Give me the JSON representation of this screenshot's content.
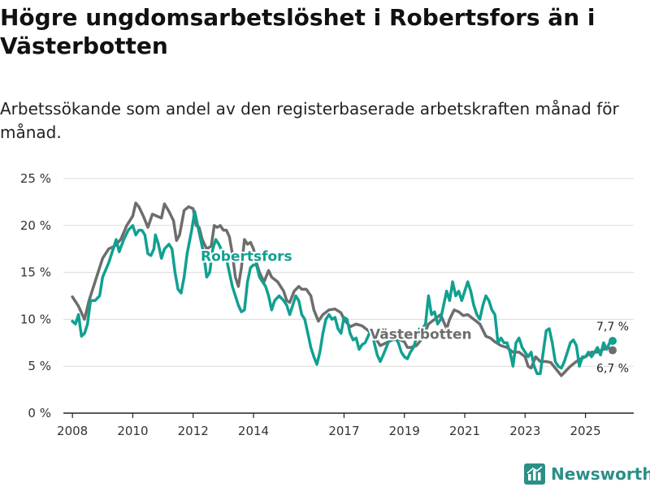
{
  "title": "Högre ungdomsarbetslöshet i Robertsfors än i Västerbotten",
  "subtitle": "Arbetssökande som andel av den registerbaserade arbetskraften månad för månad.",
  "brand": {
    "name": "Newsworthy",
    "icon": "bar-chart-logo-icon"
  },
  "colors": {
    "robertsfors": "#11a091",
    "vasterbotten": "#6d6d6d",
    "grid": "#dcdcdc",
    "brand": "#2b8f86"
  },
  "chart_data": {
    "type": "line",
    "title": "Högre ungdomsarbetslöshet i Robertsfors än i Västerbotten",
    "ylim": [
      0,
      25
    ],
    "xlim": [
      2007.7,
      2026.6
    ],
    "y_ticks": [
      0,
      5,
      10,
      15,
      20,
      25
    ],
    "y_tick_labels": [
      "0 %",
      "5 %",
      "10 %",
      "15 %",
      "20 %",
      "25 %"
    ],
    "x_ticks": [
      2008,
      2010,
      2012,
      2014,
      2017,
      2019,
      2021,
      2023,
      2025
    ],
    "x_tick_labels": [
      "2008",
      "2010",
      "2012",
      "2014",
      "2017",
      "2019",
      "2021",
      "2023",
      "2025"
    ],
    "grid": true,
    "series": [
      {
        "name": "Västerbotten",
        "label": "Västerbotten",
        "end_label": "6,7 %",
        "end_value": 6.7,
        "points": [
          [
            2008.0,
            12.4
          ],
          [
            2008.2,
            11.4
          ],
          [
            2008.4,
            10.0
          ],
          [
            2008.55,
            12.0
          ],
          [
            2008.75,
            14.0
          ],
          [
            2009.0,
            16.5
          ],
          [
            2009.2,
            17.5
          ],
          [
            2009.4,
            17.8
          ],
          [
            2009.6,
            18.5
          ],
          [
            2009.8,
            20.0
          ],
          [
            2010.0,
            21.0
          ],
          [
            2010.1,
            22.4
          ],
          [
            2010.2,
            22.0
          ],
          [
            2010.35,
            21.0
          ],
          [
            2010.5,
            19.8
          ],
          [
            2010.65,
            21.2
          ],
          [
            2010.8,
            21.0
          ],
          [
            2010.95,
            20.8
          ],
          [
            2011.05,
            22.3
          ],
          [
            2011.2,
            21.5
          ],
          [
            2011.35,
            20.5
          ],
          [
            2011.45,
            18.4
          ],
          [
            2011.55,
            19.0
          ],
          [
            2011.7,
            21.6
          ],
          [
            2011.85,
            22.0
          ],
          [
            2012.0,
            21.8
          ],
          [
            2012.1,
            20.0
          ],
          [
            2012.2,
            19.8
          ],
          [
            2012.3,
            18.5
          ],
          [
            2012.45,
            17.5
          ],
          [
            2012.6,
            17.8
          ],
          [
            2012.7,
            20.0
          ],
          [
            2012.8,
            19.8
          ],
          [
            2012.9,
            20.0
          ],
          [
            2013.0,
            19.5
          ],
          [
            2013.1,
            19.5
          ],
          [
            2013.2,
            18.8
          ],
          [
            2013.3,
            17.0
          ],
          [
            2013.4,
            14.5
          ],
          [
            2013.5,
            13.5
          ],
          [
            2013.6,
            15.5
          ],
          [
            2013.7,
            18.5
          ],
          [
            2013.8,
            18.0
          ],
          [
            2013.9,
            18.2
          ],
          [
            2014.0,
            17.5
          ],
          [
            2014.1,
            16.0
          ],
          [
            2014.2,
            15.0
          ],
          [
            2014.35,
            14.0
          ],
          [
            2014.5,
            15.2
          ],
          [
            2014.6,
            14.5
          ],
          [
            2014.8,
            14.0
          ],
          [
            2015.0,
            13.0
          ],
          [
            2015.1,
            12.0
          ],
          [
            2015.2,
            11.8
          ],
          [
            2015.35,
            13.0
          ],
          [
            2015.5,
            13.5
          ],
          [
            2015.6,
            13.2
          ],
          [
            2015.75,
            13.2
          ],
          [
            2015.9,
            12.5
          ],
          [
            2016.0,
            11.0
          ],
          [
            2016.15,
            9.8
          ],
          [
            2016.3,
            10.5
          ],
          [
            2016.5,
            11.0
          ],
          [
            2016.7,
            11.1
          ],
          [
            2016.9,
            10.7
          ],
          [
            2017.0,
            10.0
          ],
          [
            2017.2,
            9.2
          ],
          [
            2017.4,
            9.5
          ],
          [
            2017.6,
            9.3
          ],
          [
            2017.8,
            8.8
          ],
          [
            2018.0,
            8.2
          ],
          [
            2018.2,
            7.2
          ],
          [
            2018.4,
            7.5
          ],
          [
            2018.6,
            7.8
          ],
          [
            2018.8,
            7.9
          ],
          [
            2019.0,
            7.6
          ],
          [
            2019.1,
            7.0
          ],
          [
            2019.2,
            7.0
          ],
          [
            2019.4,
            7.2
          ],
          [
            2019.6,
            8.0
          ],
          [
            2019.8,
            9.5
          ],
          [
            2020.0,
            10.0
          ],
          [
            2020.2,
            10.5
          ],
          [
            2020.4,
            9.0
          ],
          [
            2020.5,
            10.0
          ],
          [
            2020.65,
            11.0
          ],
          [
            2020.8,
            10.8
          ],
          [
            2020.95,
            10.4
          ],
          [
            2021.1,
            10.5
          ],
          [
            2021.3,
            10.0
          ],
          [
            2021.5,
            9.5
          ],
          [
            2021.7,
            8.2
          ],
          [
            2021.85,
            8.0
          ],
          [
            2022.0,
            7.6
          ],
          [
            2022.2,
            7.2
          ],
          [
            2022.4,
            7.0
          ],
          [
            2022.6,
            6.5
          ],
          [
            2022.8,
            6.5
          ],
          [
            2023.0,
            6.0
          ],
          [
            2023.1,
            5.0
          ],
          [
            2023.2,
            4.8
          ],
          [
            2023.35,
            6.0
          ],
          [
            2023.5,
            5.5
          ],
          [
            2023.7,
            5.5
          ],
          [
            2023.85,
            5.4
          ],
          [
            2024.0,
            4.8
          ],
          [
            2024.2,
            4.0
          ],
          [
            2024.35,
            4.5
          ],
          [
            2024.5,
            5.0
          ],
          [
            2024.7,
            5.5
          ],
          [
            2024.85,
            5.8
          ],
          [
            2025.0,
            6.0
          ],
          [
            2025.2,
            6.5
          ],
          [
            2025.4,
            6.5
          ],
          [
            2025.6,
            6.8
          ],
          [
            2025.75,
            7.0
          ],
          [
            2025.9,
            6.7
          ]
        ]
      },
      {
        "name": "Robertsfors",
        "label": "Robertsfors",
        "end_label": "7,7 %",
        "end_value": 7.7,
        "points": [
          [
            2008.0,
            9.8
          ],
          [
            2008.1,
            9.5
          ],
          [
            2008.2,
            10.5
          ],
          [
            2008.3,
            8.2
          ],
          [
            2008.4,
            8.5
          ],
          [
            2008.5,
            9.5
          ],
          [
            2008.6,
            12.0
          ],
          [
            2008.75,
            12.0
          ],
          [
            2008.9,
            12.5
          ],
          [
            2009.0,
            14.5
          ],
          [
            2009.2,
            16.0
          ],
          [
            2009.35,
            17.5
          ],
          [
            2009.45,
            18.5
          ],
          [
            2009.55,
            17.2
          ],
          [
            2009.7,
            18.5
          ],
          [
            2009.85,
            19.5
          ],
          [
            2010.0,
            20.0
          ],
          [
            2010.1,
            19.0
          ],
          [
            2010.2,
            19.5
          ],
          [
            2010.3,
            19.5
          ],
          [
            2010.4,
            19.0
          ],
          [
            2010.5,
            17.0
          ],
          [
            2010.6,
            16.8
          ],
          [
            2010.7,
            17.5
          ],
          [
            2010.75,
            19.0
          ],
          [
            2010.85,
            18.0
          ],
          [
            2010.95,
            16.5
          ],
          [
            2011.05,
            17.5
          ],
          [
            2011.2,
            18.0
          ],
          [
            2011.3,
            17.5
          ],
          [
            2011.4,
            15.0
          ],
          [
            2011.5,
            13.2
          ],
          [
            2011.6,
            12.8
          ],
          [
            2011.7,
            14.5
          ],
          [
            2011.8,
            17.0
          ],
          [
            2011.95,
            19.5
          ],
          [
            2012.05,
            21.5
          ],
          [
            2012.15,
            20.0
          ],
          [
            2012.25,
            18.5
          ],
          [
            2012.35,
            17.0
          ],
          [
            2012.45,
            14.5
          ],
          [
            2012.55,
            15.0
          ],
          [
            2012.65,
            17.5
          ],
          [
            2012.75,
            18.5
          ],
          [
            2012.85,
            18.0
          ],
          [
            2013.0,
            17.0
          ],
          [
            2013.1,
            16.5
          ],
          [
            2013.2,
            15.0
          ],
          [
            2013.3,
            13.5
          ],
          [
            2013.4,
            12.5
          ],
          [
            2013.5,
            11.5
          ],
          [
            2013.6,
            10.8
          ],
          [
            2013.7,
            11.0
          ],
          [
            2013.8,
            14.0
          ],
          [
            2013.9,
            15.5
          ],
          [
            2014.0,
            15.8
          ],
          [
            2014.1,
            15.8
          ],
          [
            2014.2,
            14.5
          ],
          [
            2014.3,
            14.0
          ],
          [
            2014.4,
            13.5
          ],
          [
            2014.5,
            12.5
          ],
          [
            2014.6,
            11.0
          ],
          [
            2014.7,
            12.0
          ],
          [
            2014.85,
            12.5
          ],
          [
            2015.0,
            12.0
          ],
          [
            2015.1,
            11.5
          ],
          [
            2015.2,
            10.5
          ],
          [
            2015.3,
            11.5
          ],
          [
            2015.4,
            12.5
          ],
          [
            2015.5,
            12.0
          ],
          [
            2015.6,
            10.5
          ],
          [
            2015.7,
            10.0
          ],
          [
            2015.8,
            8.5
          ],
          [
            2015.9,
            7.0
          ],
          [
            2016.0,
            6.0
          ],
          [
            2016.1,
            5.2
          ],
          [
            2016.2,
            6.5
          ],
          [
            2016.3,
            8.5
          ],
          [
            2016.4,
            10.0
          ],
          [
            2016.5,
            10.5
          ],
          [
            2016.6,
            10.0
          ],
          [
            2016.7,
            10.2
          ],
          [
            2016.8,
            9.0
          ],
          [
            2016.9,
            8.5
          ],
          [
            2017.0,
            10.2
          ],
          [
            2017.1,
            10.0
          ],
          [
            2017.2,
            8.5
          ],
          [
            2017.3,
            7.8
          ],
          [
            2017.4,
            8.0
          ],
          [
            2017.5,
            6.8
          ],
          [
            2017.6,
            7.3
          ],
          [
            2017.7,
            7.5
          ],
          [
            2017.8,
            8.2
          ],
          [
            2017.9,
            9.0
          ],
          [
            2018.0,
            7.5
          ],
          [
            2018.1,
            6.2
          ],
          [
            2018.2,
            5.5
          ],
          [
            2018.3,
            6.2
          ],
          [
            2018.4,
            7.0
          ],
          [
            2018.5,
            7.8
          ],
          [
            2018.6,
            8.0
          ],
          [
            2018.7,
            8.0
          ],
          [
            2018.8,
            7.5
          ],
          [
            2018.9,
            6.5
          ],
          [
            2019.0,
            6.0
          ],
          [
            2019.1,
            5.8
          ],
          [
            2019.2,
            6.5
          ],
          [
            2019.3,
            7.0
          ],
          [
            2019.4,
            8.0
          ],
          [
            2019.5,
            9.0
          ],
          [
            2019.6,
            9.0
          ],
          [
            2019.7,
            9.5
          ],
          [
            2019.8,
            12.5
          ],
          [
            2019.9,
            10.5
          ],
          [
            2020.0,
            10.8
          ],
          [
            2020.1,
            9.5
          ],
          [
            2020.2,
            10.0
          ],
          [
            2020.3,
            11.5
          ],
          [
            2020.4,
            13.0
          ],
          [
            2020.5,
            12.0
          ],
          [
            2020.6,
            14.0
          ],
          [
            2020.7,
            12.5
          ],
          [
            2020.8,
            13.0
          ],
          [
            2020.9,
            12.0
          ],
          [
            2021.0,
            13.0
          ],
          [
            2021.1,
            14.0
          ],
          [
            2021.2,
            13.0
          ],
          [
            2021.3,
            11.5
          ],
          [
            2021.4,
            10.5
          ],
          [
            2021.5,
            10.0
          ],
          [
            2021.6,
            11.5
          ],
          [
            2021.7,
            12.5
          ],
          [
            2021.8,
            12.0
          ],
          [
            2021.9,
            11.0
          ],
          [
            2022.0,
            10.5
          ],
          [
            2022.1,
            7.5
          ],
          [
            2022.2,
            8.0
          ],
          [
            2022.3,
            7.5
          ],
          [
            2022.4,
            7.5
          ],
          [
            2022.5,
            6.5
          ],
          [
            2022.6,
            5.0
          ],
          [
            2022.7,
            7.5
          ],
          [
            2022.8,
            8.0
          ],
          [
            2022.9,
            7.0
          ],
          [
            2023.0,
            6.5
          ],
          [
            2023.1,
            6.0
          ],
          [
            2023.2,
            6.5
          ],
          [
            2023.3,
            5.0
          ],
          [
            2023.4,
            4.2
          ],
          [
            2023.5,
            4.2
          ],
          [
            2023.6,
            6.5
          ],
          [
            2023.7,
            8.8
          ],
          [
            2023.8,
            9.0
          ],
          [
            2023.9,
            7.5
          ],
          [
            2024.0,
            5.5
          ],
          [
            2024.1,
            5.0
          ],
          [
            2024.2,
            4.8
          ],
          [
            2024.3,
            5.5
          ],
          [
            2024.4,
            6.5
          ],
          [
            2024.5,
            7.5
          ],
          [
            2024.6,
            7.8
          ],
          [
            2024.7,
            7.2
          ],
          [
            2024.8,
            5.0
          ],
          [
            2024.9,
            6.0
          ],
          [
            2025.0,
            6.0
          ],
          [
            2025.1,
            6.5
          ],
          [
            2025.2,
            6.0
          ],
          [
            2025.3,
            6.5
          ],
          [
            2025.4,
            7.0
          ],
          [
            2025.5,
            6.2
          ],
          [
            2025.6,
            7.5
          ],
          [
            2025.7,
            6.8
          ],
          [
            2025.8,
            7.5
          ],
          [
            2025.9,
            7.7
          ]
        ]
      }
    ]
  }
}
